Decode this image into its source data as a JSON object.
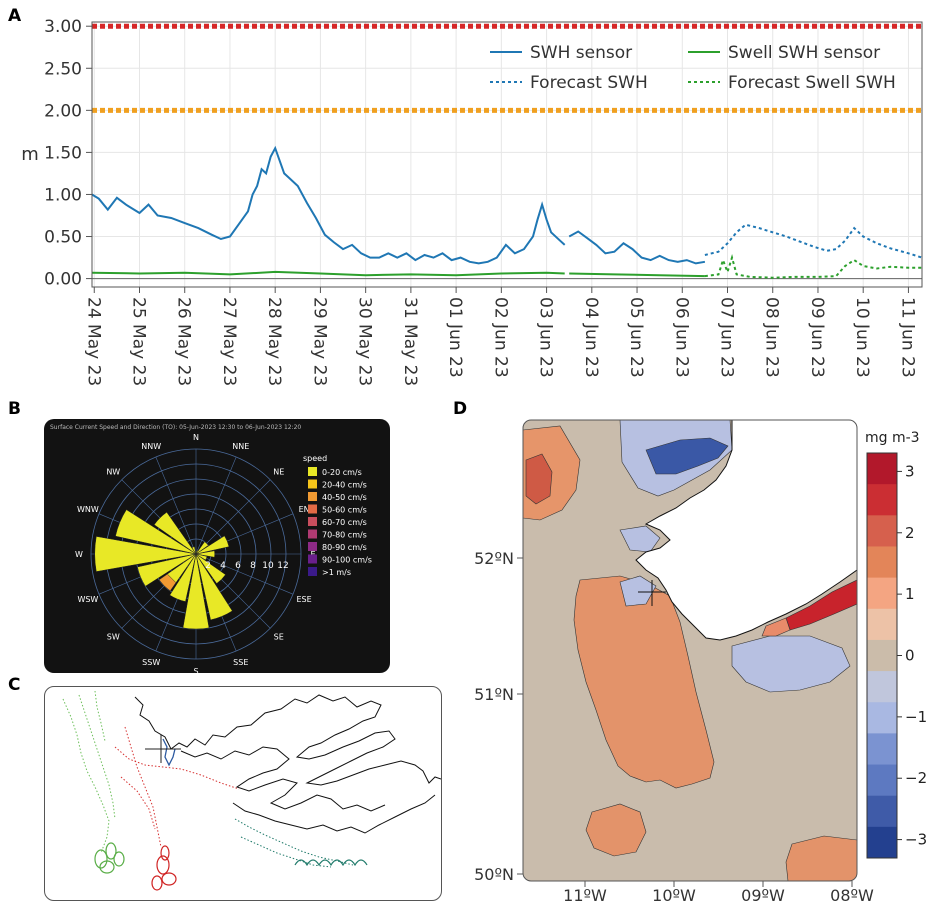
{
  "panel_labels": {
    "a": "A",
    "b": "B",
    "c": "C",
    "d": "D"
  },
  "chart_data": [
    {
      "id": "A",
      "type": "line",
      "ylabel": "m",
      "ylim": [
        -0.1,
        3.05
      ],
      "yticks": [
        "3.00",
        "2.50",
        "2.00",
        "1.50",
        "1.00",
        "0.50",
        "0.00"
      ],
      "ytick_values": [
        3.0,
        2.5,
        2.0,
        1.5,
        1.0,
        0.5,
        0.0
      ],
      "xticks": [
        "24 May 23",
        "25 May 23",
        "26 May 23",
        "27 May 23",
        "28 May 23",
        "29 May 23",
        "30 May 23",
        "31 May 23",
        "01 Jun 23",
        "02 Jun 23",
        "03 Jun 23",
        "04 Jun 23",
        "05 Jun 23",
        "06 Jun 23",
        "07 Jun 23",
        "08 Jun 23",
        "09 Jun 23",
        "10 Jun 23",
        "11 Jun 23"
      ],
      "xlim": [
        -0.05,
        18.3
      ],
      "thresholds": [
        {
          "value": 3.0,
          "color": "#d62728"
        },
        {
          "value": 2.0,
          "color": "#f0a020"
        }
      ],
      "legend": [
        "SWH sensor",
        "Swell SWH sensor",
        "Forecast SWH",
        "Forecast Swell SWH"
      ],
      "series": [
        {
          "name": "SWH sensor",
          "color": "#1f77b4",
          "dash": false,
          "points": [
            [
              -0.05,
              1.0
            ],
            [
              0.1,
              0.95
            ],
            [
              0.3,
              0.82
            ],
            [
              0.5,
              0.96
            ],
            [
              0.7,
              0.88
            ],
            [
              1.0,
              0.78
            ],
            [
              1.2,
              0.88
            ],
            [
              1.4,
              0.75
            ],
            [
              1.7,
              0.72
            ],
            [
              2.0,
              0.66
            ],
            [
              2.3,
              0.6
            ],
            [
              2.6,
              0.52
            ],
            [
              2.8,
              0.47
            ],
            [
              3.0,
              0.5
            ],
            [
              3.2,
              0.65
            ],
            [
              3.4,
              0.8
            ],
            [
              3.5,
              1.0
            ],
            [
              3.6,
              1.1
            ],
            [
              3.7,
              1.3
            ],
            [
              3.8,
              1.25
            ],
            [
              3.9,
              1.45
            ],
            [
              4.0,
              1.55
            ],
            [
              4.1,
              1.4
            ],
            [
              4.2,
              1.25
            ],
            [
              4.3,
              1.2
            ],
            [
              4.5,
              1.1
            ],
            [
              4.7,
              0.9
            ],
            [
              4.9,
              0.72
            ],
            [
              5.1,
              0.52
            ],
            [
              5.3,
              0.43
            ],
            [
              5.5,
              0.35
            ],
            [
              5.7,
              0.4
            ],
            [
              5.9,
              0.3
            ],
            [
              6.1,
              0.25
            ],
            [
              6.3,
              0.25
            ],
            [
              6.5,
              0.3
            ],
            [
              6.7,
              0.25
            ],
            [
              6.9,
              0.3
            ],
            [
              7.1,
              0.22
            ],
            [
              7.3,
              0.28
            ],
            [
              7.5,
              0.25
            ],
            [
              7.7,
              0.3
            ],
            [
              7.9,
              0.22
            ],
            [
              8.1,
              0.25
            ],
            [
              8.3,
              0.2
            ],
            [
              8.5,
              0.18
            ],
            [
              8.7,
              0.2
            ],
            [
              8.9,
              0.25
            ],
            [
              9.1,
              0.4
            ],
            [
              9.3,
              0.3
            ],
            [
              9.5,
              0.35
            ],
            [
              9.7,
              0.5
            ],
            [
              9.8,
              0.7
            ],
            [
              9.9,
              0.88
            ],
            [
              10.0,
              0.7
            ],
            [
              10.1,
              0.55
            ],
            [
              10.3,
              0.45
            ],
            [
              10.4,
              0.4
            ]
          ]
        },
        {
          "name": "SWH sensor",
          "color": "#1f77b4",
          "dash": false,
          "points": [
            [
              10.5,
              0.5
            ],
            [
              10.7,
              0.56
            ],
            [
              10.9,
              0.48
            ],
            [
              11.1,
              0.4
            ],
            [
              11.3,
              0.3
            ],
            [
              11.5,
              0.32
            ],
            [
              11.7,
              0.42
            ],
            [
              11.9,
              0.35
            ],
            [
              12.1,
              0.25
            ],
            [
              12.3,
              0.22
            ],
            [
              12.5,
              0.27
            ],
            [
              12.7,
              0.22
            ],
            [
              12.9,
              0.2
            ],
            [
              13.1,
              0.22
            ],
            [
              13.3,
              0.18
            ],
            [
              13.5,
              0.2
            ]
          ]
        },
        {
          "name": "Swell SWH sensor",
          "color": "#2ca02c",
          "dash": false,
          "points": [
            [
              -0.05,
              0.07
            ],
            [
              1.0,
              0.06
            ],
            [
              2.0,
              0.07
            ],
            [
              3.0,
              0.05
            ],
            [
              4.0,
              0.08
            ],
            [
              5.0,
              0.06
            ],
            [
              6.0,
              0.04
            ],
            [
              7.0,
              0.05
            ],
            [
              8.0,
              0.04
            ],
            [
              9.0,
              0.06
            ],
            [
              10.0,
              0.07
            ],
            [
              10.4,
              0.06
            ]
          ]
        },
        {
          "name": "Swell SWH sensor",
          "color": "#2ca02c",
          "dash": false,
          "points": [
            [
              10.5,
              0.06
            ],
            [
              11.5,
              0.05
            ],
            [
              12.5,
              0.04
            ],
            [
              13.5,
              0.03
            ]
          ]
        },
        {
          "name": "Forecast SWH",
          "color": "#1f77b4",
          "dash": true,
          "points": [
            [
              13.5,
              0.28
            ],
            [
              13.8,
              0.32
            ],
            [
              14.0,
              0.42
            ],
            [
              14.2,
              0.55
            ],
            [
              14.4,
              0.64
            ],
            [
              14.7,
              0.6
            ],
            [
              15.0,
              0.55
            ],
            [
              15.3,
              0.5
            ],
            [
              15.6,
              0.44
            ],
            [
              15.9,
              0.38
            ],
            [
              16.2,
              0.33
            ],
            [
              16.4,
              0.35
            ],
            [
              16.6,
              0.45
            ],
            [
              16.8,
              0.6
            ],
            [
              17.0,
              0.5
            ],
            [
              17.3,
              0.42
            ],
            [
              17.6,
              0.36
            ],
            [
              18.0,
              0.3
            ],
            [
              18.3,
              0.25
            ]
          ]
        },
        {
          "name": "Forecast Swell SWH",
          "color": "#2ca02c",
          "dash": true,
          "points": [
            [
              13.5,
              0.03
            ],
            [
              13.8,
              0.05
            ],
            [
              13.9,
              0.22
            ],
            [
              14.0,
              0.08
            ],
            [
              14.1,
              0.25
            ],
            [
              14.2,
              0.05
            ],
            [
              14.5,
              0.02
            ],
            [
              15.0,
              0.01
            ],
            [
              15.5,
              0.02
            ],
            [
              16.0,
              0.02
            ],
            [
              16.4,
              0.03
            ],
            [
              16.6,
              0.15
            ],
            [
              16.8,
              0.22
            ],
            [
              17.0,
              0.15
            ],
            [
              17.3,
              0.12
            ],
            [
              17.6,
              0.14
            ],
            [
              18.0,
              0.13
            ],
            [
              18.3,
              0.13
            ]
          ]
        }
      ]
    },
    {
      "id": "B",
      "type": "polar-bar",
      "title": "Surface Current Speed and Direction (TO): 05-Jun-2023 12:30 to 06-Jun-2023 12:20",
      "directions": [
        "N",
        "NNE",
        "NE",
        "ENE",
        "E",
        "ESE",
        "SE",
        "SSE",
        "S",
        "SSW",
        "SW",
        "WSW",
        "W",
        "WNW",
        "NW",
        "NNW"
      ],
      "direction_labels": [
        "N",
        "NNE",
        "NE",
        "EN",
        "E",
        "ESE",
        "SE",
        "SSE",
        "S",
        "SSW",
        "SW",
        "WSW",
        "W",
        "WNW",
        "NW",
        "NNW"
      ],
      "radial_ticks": [
        "2",
        "4",
        "6",
        "8",
        "10",
        "12"
      ],
      "radial_max": 14,
      "values": [
        0.3,
        0.5,
        2.0,
        4.5,
        2.5,
        1.5,
        4.8,
        9.0,
        10.0,
        6.5,
        6.0,
        8.0,
        13.5,
        11.0,
        6.8,
        1.0
      ],
      "legend_title": "speed",
      "legend": [
        {
          "label": "0-20 cm/s",
          "color": "#e8e826"
        },
        {
          "label": "20-40 cm/s",
          "color": "#f6c51a"
        },
        {
          "label": "40-50 cm/s",
          "color": "#f19a32"
        },
        {
          "label": "50-60 cm/s",
          "color": "#e26a45"
        },
        {
          "label": "60-70 cm/s",
          "color": "#c94e5e"
        },
        {
          "label": "70-80 cm/s",
          "color": "#b03a72"
        },
        {
          "label": "80-90 cm/s",
          "color": "#8d2a86"
        },
        {
          "label": "90-100 cm/s",
          "color": "#6a1f8c"
        },
        {
          "label": ">1 m/s",
          "color": "#3b1a8a"
        }
      ]
    },
    {
      "id": "D",
      "type": "heatmap",
      "yticks": [
        "52ºN",
        "51ºN",
        "50ºN"
      ],
      "xticks": [
        "11ºW",
        "10ºW",
        "09ºW",
        "08ºW"
      ],
      "colorbar_label": "mg m-3",
      "colorbar_ticks": [
        "3",
        "2",
        "1",
        "0",
        "−1",
        "−2",
        "−3"
      ],
      "colorbar_values": [
        3,
        2,
        1,
        0,
        -1,
        -2,
        -3
      ],
      "colorbar_colors": [
        "#b2182b",
        "#cb2e33",
        "#d6604d",
        "#e38559",
        "#f4a582",
        "#edc2a7",
        "#cbbcaa",
        "#c0c6dc",
        "#a9b8e2",
        "#7b93d1",
        "#5d79c1",
        "#3f5ba8",
        "#23408f"
      ]
    }
  ]
}
